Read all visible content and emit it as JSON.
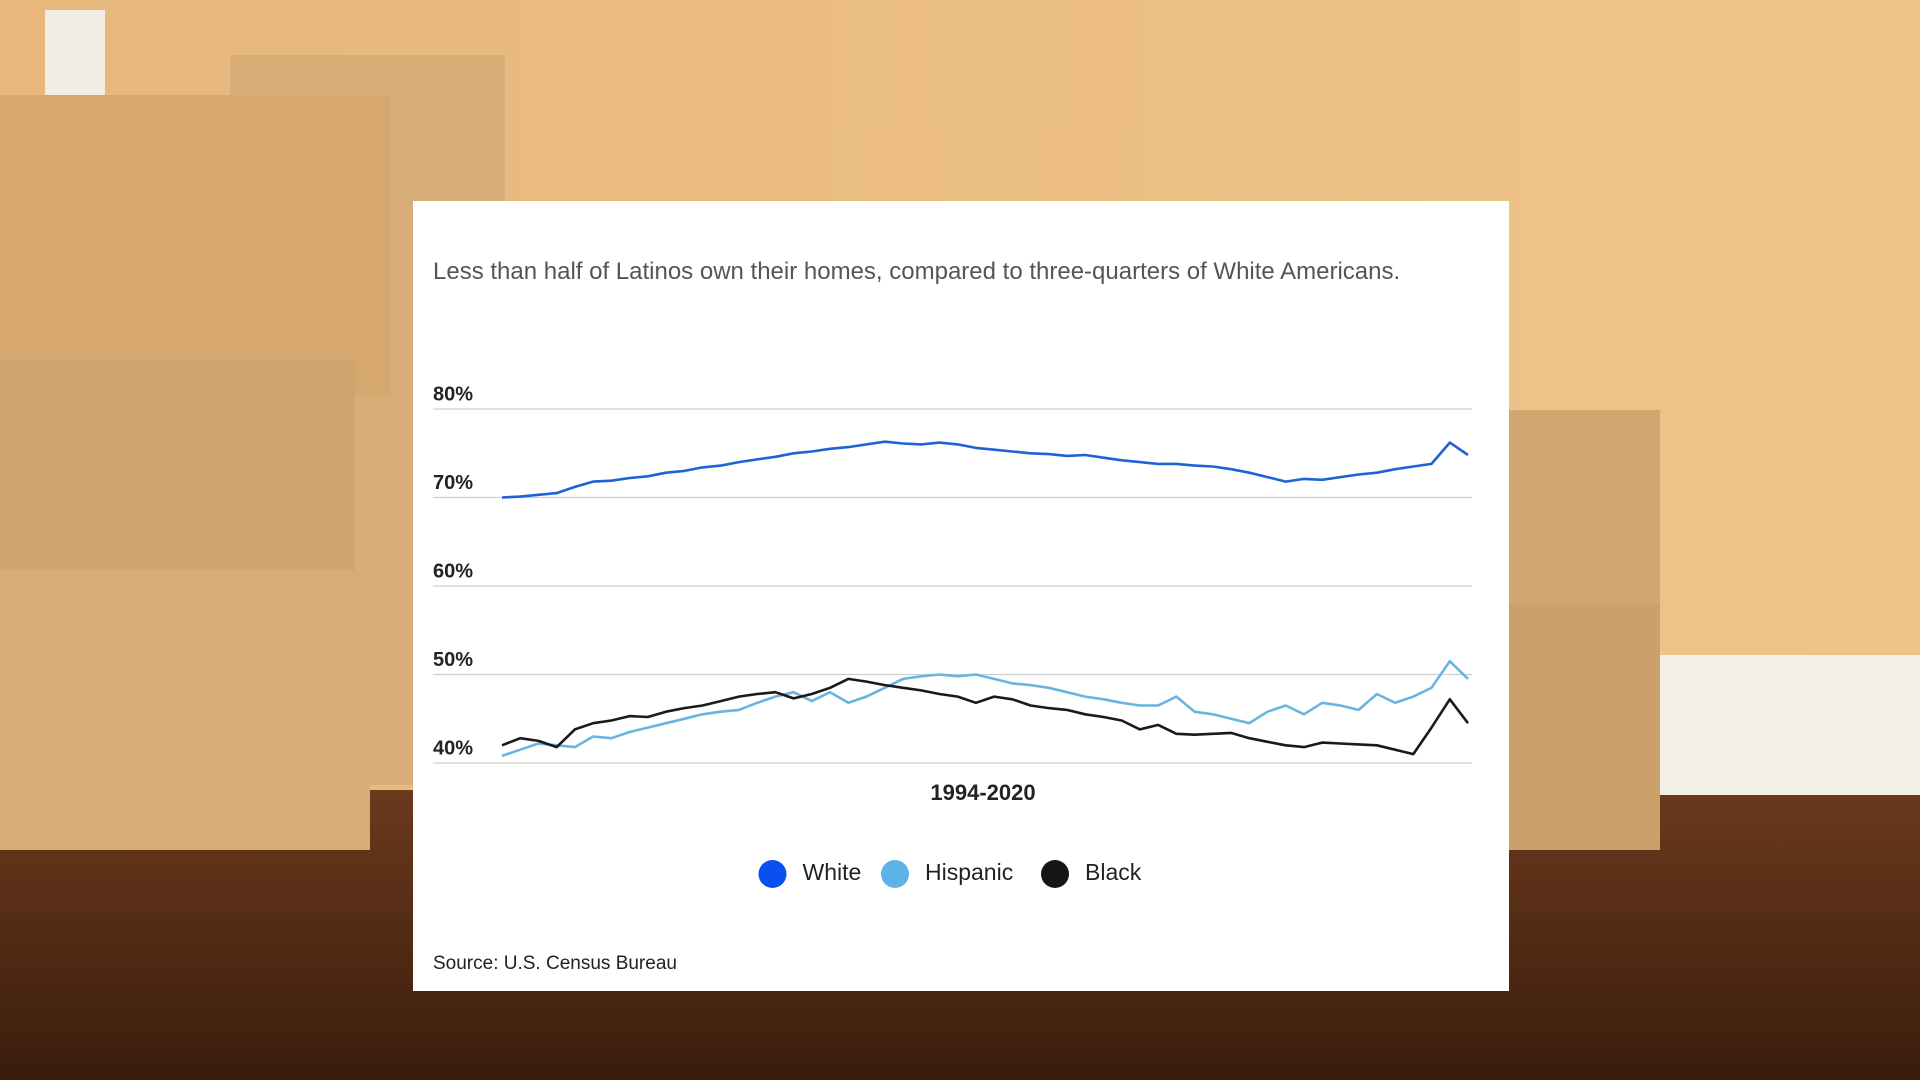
{
  "chart_data": {
    "type": "line",
    "title": "Less than half of Latinos own their homes, compared to three-quarters of White Americans.",
    "x_label": "1994-2020",
    "source": "Source: U.S. Census Bureau",
    "categories": [
      null,
      null,
      null,
      null,
      null,
      null,
      null,
      null,
      null,
      null,
      null,
      null,
      null,
      null,
      null,
      null,
      null,
      null,
      null,
      null,
      null,
      null,
      null,
      null,
      null,
      null,
      null,
      null,
      null,
      null,
      null,
      null,
      null,
      null,
      null,
      null,
      null,
      null,
      null,
      null,
      null,
      null,
      null,
      null,
      null,
      null,
      null,
      null,
      null,
      null,
      null,
      null,
      null,
      null
    ],
    "ylim": [
      40,
      80
    ],
    "yticks": [
      {
        "value": 40,
        "label": "40%"
      },
      {
        "value": 50,
        "label": "50%"
      },
      {
        "value": 60,
        "label": "60%"
      },
      {
        "value": 70,
        "label": "70%"
      },
      {
        "value": 80,
        "label": "80%"
      }
    ],
    "grid": true,
    "legend": "bottom",
    "series": [
      {
        "name": "White",
        "color": "#1f62d8",
        "legend_color": "#0a4ff0",
        "values": [
          70.0,
          70.1,
          70.3,
          70.5,
          71.2,
          71.8,
          71.9,
          72.2,
          72.4,
          72.8,
          73.0,
          73.4,
          73.6,
          74.0,
          74.3,
          74.6,
          75.0,
          75.2,
          75.5,
          75.7,
          76.0,
          76.3,
          76.1,
          76.0,
          76.2,
          76.0,
          75.6,
          75.4,
          75.2,
          75.0,
          74.9,
          74.7,
          74.8,
          74.5,
          74.2,
          74.0,
          73.8,
          73.8,
          73.6,
          73.5,
          73.2,
          72.8,
          72.3,
          71.8,
          72.1,
          72.0,
          72.3,
          72.6,
          72.8,
          73.2,
          73.5,
          73.8,
          76.2,
          74.8
        ]
      },
      {
        "name": "Hispanic",
        "color": "#6ab4e0",
        "legend_color": "#5fb2e6",
        "values": [
          40.8,
          41.5,
          42.2,
          42.0,
          41.8,
          43.0,
          42.8,
          43.5,
          44.0,
          44.5,
          45.0,
          45.5,
          45.8,
          46.0,
          46.8,
          47.5,
          48.0,
          47.0,
          48.0,
          46.8,
          47.5,
          48.5,
          49.5,
          49.8,
          50.0,
          49.8,
          50.0,
          49.5,
          49.0,
          48.8,
          48.5,
          48.0,
          47.5,
          47.2,
          46.8,
          46.5,
          46.5,
          47.5,
          45.8,
          45.5,
          45.0,
          44.5,
          45.8,
          46.5,
          45.5,
          46.8,
          46.5,
          46.0,
          47.8,
          46.8,
          47.5,
          48.5,
          51.5,
          49.5
        ]
      },
      {
        "name": "Black",
        "color": "#1a1a1a",
        "legend_color": "#151515",
        "values": [
          42.0,
          42.8,
          42.5,
          41.8,
          43.8,
          44.5,
          44.8,
          45.3,
          45.2,
          45.8,
          46.2,
          46.5,
          47.0,
          47.5,
          47.8,
          48.0,
          47.3,
          47.8,
          48.5,
          49.5,
          49.2,
          48.8,
          48.5,
          48.2,
          47.8,
          47.5,
          46.8,
          47.5,
          47.2,
          46.5,
          46.2,
          46.0,
          45.5,
          45.2,
          44.8,
          43.8,
          44.3,
          43.3,
          43.2,
          43.3,
          43.4,
          42.8,
          42.4,
          42.0,
          41.8,
          42.3,
          42.2,
          42.1,
          42.0,
          41.5,
          41.0,
          44.0,
          47.2,
          44.5
        ]
      }
    ]
  }
}
